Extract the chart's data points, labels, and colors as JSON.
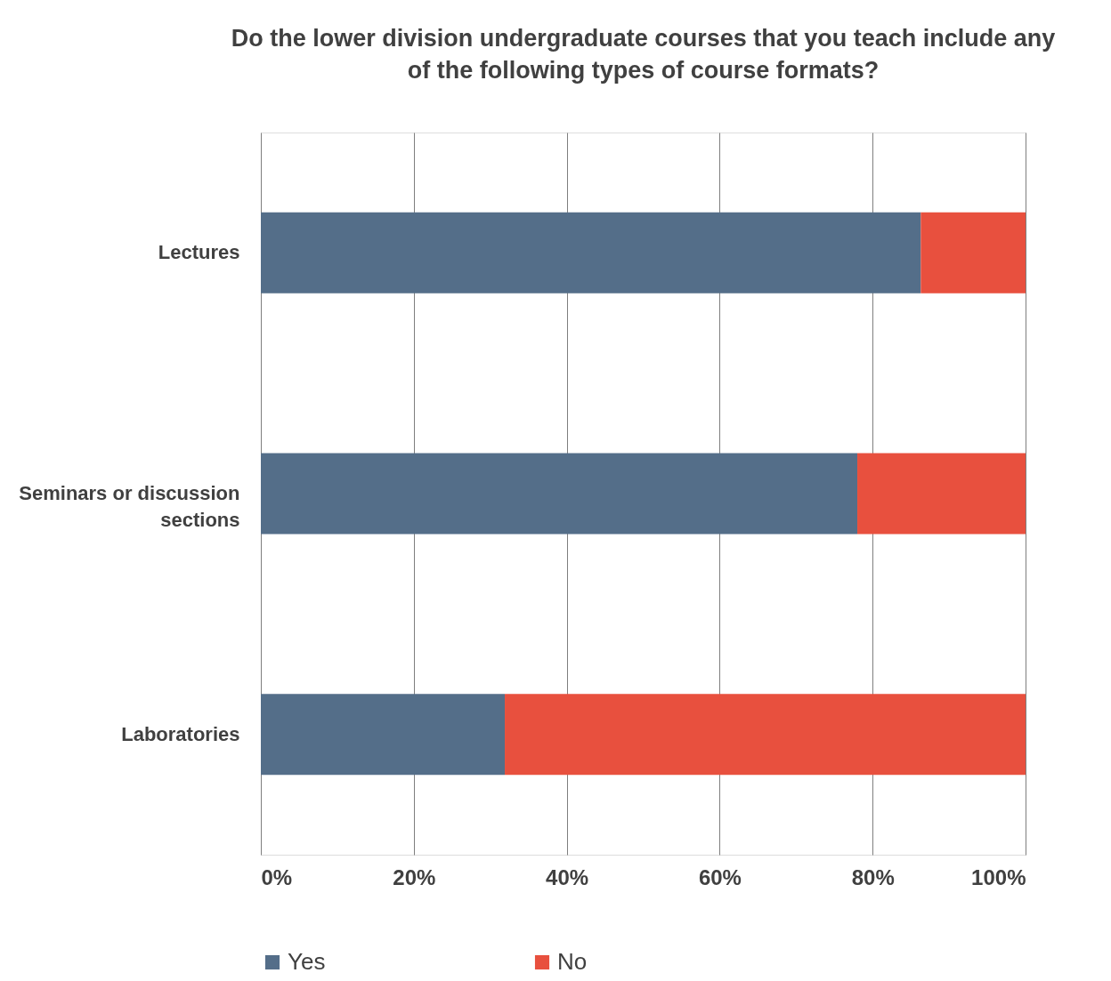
{
  "chart_data": {
    "type": "bar",
    "orientation": "horizontal",
    "stacked": true,
    "title": "Do the lower division undergraduate courses that you teach include any of the following types of course formats?",
    "categories": [
      "Lectures",
      "Seminars or discussion sections",
      "Laboratories"
    ],
    "series": [
      {
        "name": "Yes",
        "color": "#546e89",
        "values": [
          86.3,
          78,
          31.9
        ]
      },
      {
        "name": "No",
        "color": "#e8503e",
        "values": [
          13.7,
          22,
          68.1
        ]
      }
    ],
    "xlim": [
      0,
      100
    ],
    "xticks": [
      {
        "value": 0,
        "label": "0%"
      },
      {
        "value": 20,
        "label": "20%"
      },
      {
        "value": 40,
        "label": "40%"
      },
      {
        "value": 60,
        "label": "60%"
      },
      {
        "value": 80,
        "label": "80%"
      },
      {
        "value": 100,
        "label": "100%"
      }
    ],
    "grid": "x",
    "legend": "bottom"
  }
}
